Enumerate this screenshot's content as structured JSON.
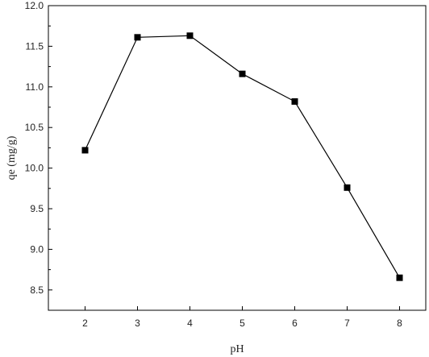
{
  "chart_data": {
    "type": "line",
    "title": "",
    "xlabel": "pH",
    "ylabel": "qe (mg/g)",
    "x": [
      2,
      3,
      4,
      5,
      6,
      7,
      8
    ],
    "series": [
      {
        "values": [
          10.22,
          11.61,
          11.63,
          11.16,
          10.82,
          9.76,
          8.65
        ]
      }
    ],
    "xlim": [
      1.3,
      8.5
    ],
    "ylim": [
      8.25,
      12.0
    ],
    "xticks": [
      "2",
      "3",
      "4",
      "5",
      "6",
      "7",
      "8"
    ],
    "yticks": [
      "8.5",
      "9.0",
      "9.5",
      "10.0",
      "10.5",
      "11.0",
      "11.5",
      "12.0"
    ],
    "grid": false,
    "legend": "none",
    "marker": "square",
    "colors": {
      "line": "#000000",
      "marker": "#000000",
      "axis": "#000000"
    }
  }
}
